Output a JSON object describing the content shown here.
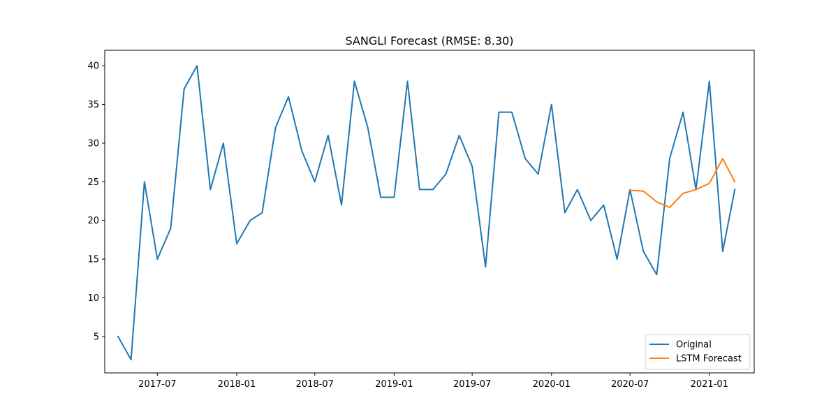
{
  "chart_data": {
    "type": "line",
    "title": "SANGLI Forecast (RMSE: 8.30)",
    "xlabel": "",
    "ylabel": "",
    "x_range": [
      "2017-03-01",
      "2021-04-15"
    ],
    "ylim": [
      0.3,
      42
    ],
    "y_ticks": [
      5,
      10,
      15,
      20,
      25,
      30,
      35,
      40
    ],
    "x_ticks": [
      {
        "date": "2017-07-01",
        "label": "2017-07"
      },
      {
        "date": "2018-01-01",
        "label": "2018-01"
      },
      {
        "date": "2018-07-01",
        "label": "2018-07"
      },
      {
        "date": "2019-01-01",
        "label": "2019-01"
      },
      {
        "date": "2019-07-01",
        "label": "2019-07"
      },
      {
        "date": "2020-01-01",
        "label": "2020-01"
      },
      {
        "date": "2020-07-01",
        "label": "2020-07"
      },
      {
        "date": "2021-01-01",
        "label": "2021-01"
      }
    ],
    "grid": false,
    "legend_position": "lower-right",
    "series": [
      {
        "name": "Original",
        "color": "#1f77b4",
        "points": [
          [
            "2017-04-01",
            5
          ],
          [
            "2017-05-01",
            2
          ],
          [
            "2017-06-01",
            25
          ],
          [
            "2017-07-01",
            15
          ],
          [
            "2017-08-01",
            19
          ],
          [
            "2017-09-01",
            37
          ],
          [
            "2017-10-01",
            40
          ],
          [
            "2017-11-01",
            24
          ],
          [
            "2017-12-01",
            30
          ],
          [
            "2018-01-01",
            17
          ],
          [
            "2018-02-01",
            20
          ],
          [
            "2018-03-01",
            21
          ],
          [
            "2018-04-01",
            32
          ],
          [
            "2018-05-01",
            36
          ],
          [
            "2018-06-01",
            29
          ],
          [
            "2018-07-01",
            25
          ],
          [
            "2018-08-01",
            31
          ],
          [
            "2018-09-01",
            22
          ],
          [
            "2018-10-01",
            38
          ],
          [
            "2018-11-01",
            32
          ],
          [
            "2018-12-01",
            23
          ],
          [
            "2019-01-01",
            23
          ],
          [
            "2019-02-01",
            38
          ],
          [
            "2019-03-01",
            24
          ],
          [
            "2019-04-01",
            24
          ],
          [
            "2019-05-01",
            26
          ],
          [
            "2019-06-01",
            31
          ],
          [
            "2019-07-01",
            27
          ],
          [
            "2019-08-01",
            14
          ],
          [
            "2019-09-01",
            34
          ],
          [
            "2019-10-01",
            34
          ],
          [
            "2019-11-01",
            28
          ],
          [
            "2019-12-01",
            26
          ],
          [
            "2020-01-01",
            35
          ],
          [
            "2020-02-01",
            21
          ],
          [
            "2020-03-01",
            24
          ],
          [
            "2020-04-01",
            20
          ],
          [
            "2020-05-01",
            22
          ],
          [
            "2020-06-01",
            15
          ],
          [
            "2020-07-01",
            24
          ],
          [
            "2020-08-01",
            16
          ],
          [
            "2020-09-01",
            13
          ],
          [
            "2020-10-01",
            28
          ],
          [
            "2020-11-01",
            34
          ],
          [
            "2020-12-01",
            24
          ],
          [
            "2021-01-01",
            38
          ],
          [
            "2021-02-01",
            16
          ],
          [
            "2021-03-01",
            24
          ]
        ]
      },
      {
        "name": "LSTM Forecast",
        "color": "#ff7f0e",
        "points": [
          [
            "2020-07-01",
            23.9
          ],
          [
            "2020-08-01",
            23.8
          ],
          [
            "2020-09-01",
            22.4
          ],
          [
            "2020-10-01",
            21.7
          ],
          [
            "2020-11-01",
            23.5
          ],
          [
            "2020-12-01",
            24.0
          ],
          [
            "2021-01-01",
            24.8
          ],
          [
            "2021-02-01",
            28.0
          ],
          [
            "2021-03-01",
            25.0
          ]
        ]
      }
    ]
  }
}
